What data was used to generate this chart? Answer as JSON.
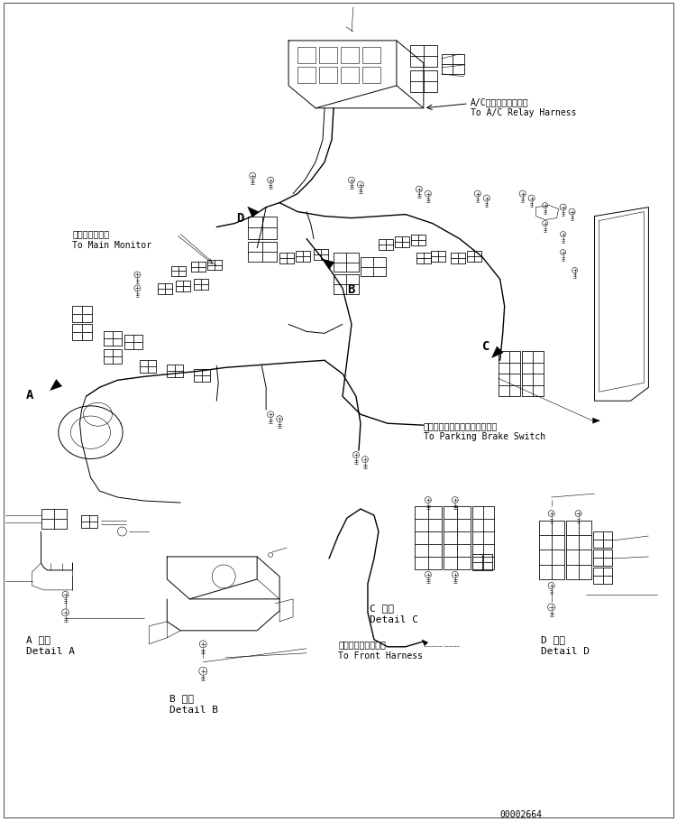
{
  "background_color": "#ffffff",
  "line_color": "#000000",
  "fig_width": 7.51,
  "fig_height": 9.11,
  "dpi": 100,
  "part_number": "00002664",
  "labels": {
    "ac_relay_jp": "A/Cリレーハーネスへ",
    "ac_relay_en": "To A/C Relay Harness",
    "main_monitor_jp": "メインモニタへ",
    "main_monitor_en": "To Main Monitor",
    "parking_brake_jp": "パーキングブレーキスイッチへ",
    "parking_brake_en": "To Parking Brake Switch",
    "front_harness_jp": "フロントハーネスへ",
    "front_harness_en": "To Front Harness",
    "detail_a_jp": "A 詳細",
    "detail_a_en": "Detail A",
    "detail_b_jp": "B 詳細",
    "detail_b_en": "Detail B",
    "detail_c_jp": "C 詳細",
    "detail_c_en": "Detail C",
    "detail_d_jp": "D 詳細",
    "detail_d_en": "Detail D"
  }
}
